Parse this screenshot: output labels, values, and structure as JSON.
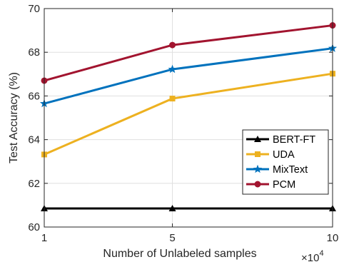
{
  "chart_data": {
    "type": "line",
    "title": "",
    "xlabel": "Number of Unlabeled samples",
    "ylabel": "Test Accuracy (%)",
    "x_multiplier_base": "×10",
    "x_multiplier_exp": "4",
    "x": [
      1,
      5,
      10
    ],
    "x_tick_labels": [
      "1",
      "5",
      "10"
    ],
    "xlim": [
      1,
      10
    ],
    "ylim": [
      60,
      70
    ],
    "y_ticks": [
      60,
      62,
      64,
      66,
      68,
      70
    ],
    "grid": true,
    "legend_position": "right",
    "series": [
      {
        "name": "BERT-FT",
        "color": "#000000",
        "marker": "triangle",
        "values": [
          60.85,
          60.85,
          60.85
        ]
      },
      {
        "name": "UDA",
        "color": "#EDB120",
        "marker": "square",
        "values": [
          63.32,
          65.88,
          67.02
        ]
      },
      {
        "name": "MixText",
        "color": "#0072BD",
        "marker": "star",
        "values": [
          65.65,
          67.22,
          68.18
        ]
      },
      {
        "name": "PCM",
        "color": "#A2142F",
        "marker": "circle",
        "values": [
          66.7,
          68.33,
          69.23
        ]
      }
    ]
  }
}
